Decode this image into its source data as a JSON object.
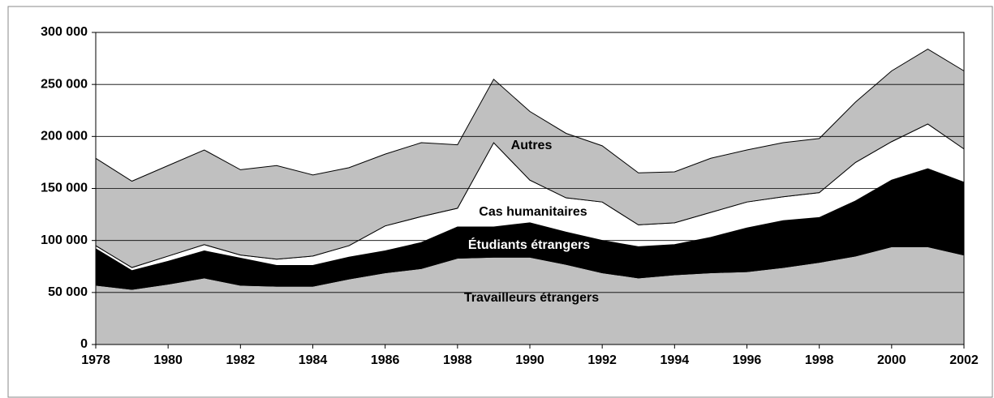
{
  "chart_data": {
    "type": "stacked_area",
    "x": [
      1978,
      1979,
      1980,
      1981,
      1982,
      1983,
      1984,
      1985,
      1986,
      1987,
      1988,
      1989,
      1990,
      1991,
      1992,
      1993,
      1994,
      1995,
      1996,
      1997,
      1998,
      1999,
      2000,
      2001,
      2002
    ],
    "xlim": [
      1978,
      2002
    ],
    "xticks": [
      1978,
      1980,
      1982,
      1984,
      1986,
      1988,
      1990,
      1992,
      1994,
      1996,
      1998,
      2000,
      2002
    ],
    "ylim": [
      0,
      300000
    ],
    "yticks": [
      0,
      {
        "value": 50000,
        "label": "50 000"
      },
      {
        "value": 100000,
        "label": "100 000"
      },
      {
        "value": 150000,
        "label": "150 000"
      },
      {
        "value": 200000,
        "label": "200 000"
      },
      {
        "value": 250000,
        "label": "250 000"
      },
      {
        "value": 300000,
        "label": "300 000"
      }
    ],
    "grid": true,
    "series": [
      {
        "name": "Travailleurs étrangers",
        "color": "#c0c0c0",
        "values": [
          57000,
          53000,
          58000,
          64000,
          57000,
          56000,
          56000,
          63000,
          69000,
          73000,
          83000,
          84000,
          84000,
          77000,
          69000,
          64000,
          67000,
          69000,
          70000,
          74000,
          79000,
          85000,
          94000,
          94000,
          86000
        ]
      },
      {
        "name": "Étudiants étrangers",
        "color": "#000000",
        "values": [
          35000,
          18000,
          22000,
          26000,
          26000,
          20000,
          20000,
          21000,
          21000,
          25000,
          30000,
          29000,
          33000,
          31000,
          31000,
          30000,
          29000,
          34000,
          42000,
          45000,
          43000,
          53000,
          64000,
          75000,
          70000
        ]
      },
      {
        "name": "Cas humanitaires",
        "color": "#ffffff",
        "values": [
          3000,
          3000,
          5000,
          6000,
          3000,
          6000,
          9000,
          11000,
          24000,
          25000,
          18000,
          81000,
          41000,
          33000,
          37000,
          21000,
          21000,
          24000,
          25000,
          23000,
          24000,
          37000,
          37000,
          43000,
          32000
        ]
      },
      {
        "name": "Autres",
        "color": "#c0c0c0",
        "values": [
          84000,
          83000,
          87000,
          91000,
          82000,
          90000,
          78000,
          75000,
          69000,
          71000,
          61000,
          61000,
          66000,
          62000,
          54000,
          50000,
          49000,
          52000,
          50000,
          52000,
          52000,
          58000,
          68000,
          72000,
          75000
        ]
      }
    ]
  }
}
